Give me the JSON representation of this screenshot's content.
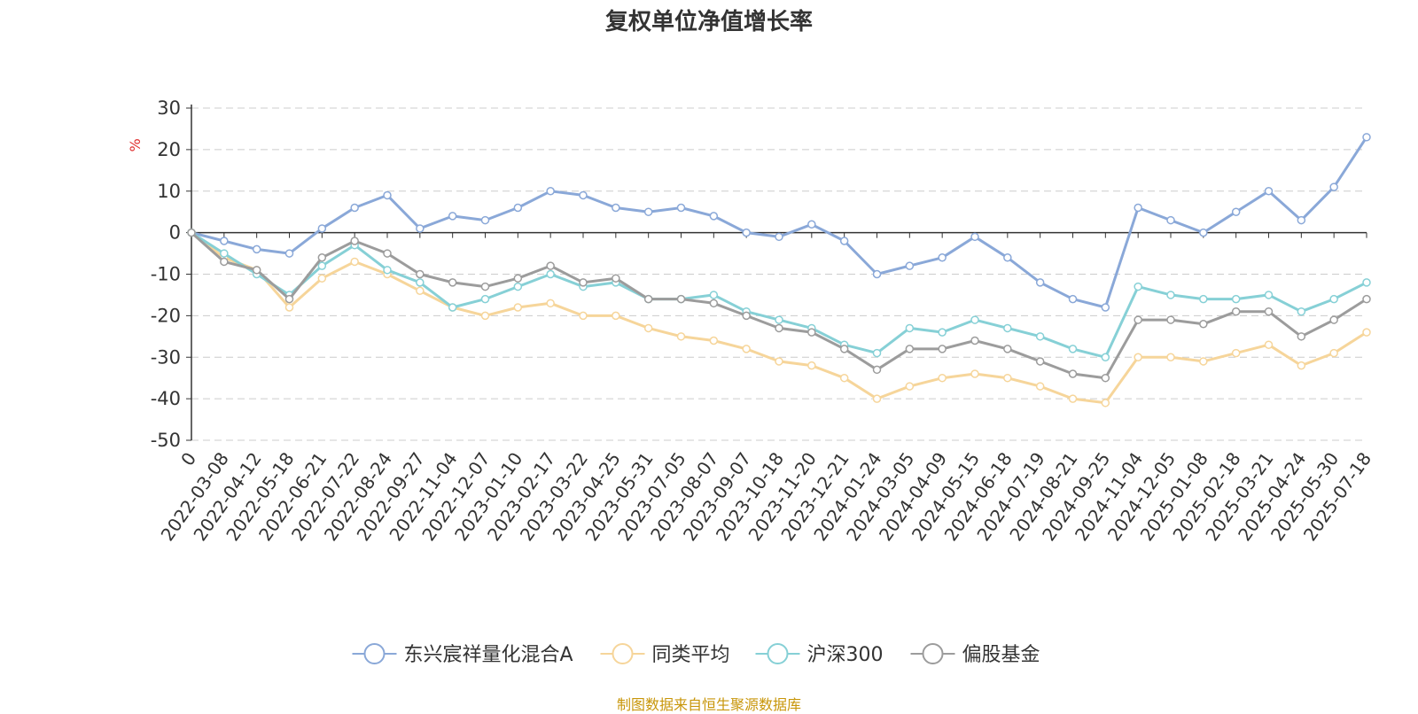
{
  "title": "复权单位净值增长率",
  "source": "制图数据来自恒生聚源数据库",
  "chart_data": {
    "type": "line",
    "ylabel": "%",
    "ylim": [
      -50,
      30
    ],
    "yticks": [
      30,
      20,
      10,
      0,
      -10,
      -20,
      -30,
      -40,
      -50
    ],
    "grid": true,
    "legend_position": "bottom",
    "x": [
      "0",
      "2022-03-08",
      "2022-04-12",
      "2022-05-18",
      "2022-06-21",
      "2022-07-22",
      "2022-08-24",
      "2022-09-27",
      "2022-11-04",
      "2022-12-07",
      "2023-01-10",
      "2023-02-17",
      "2023-03-22",
      "2023-04-25",
      "2023-05-31",
      "2023-07-05",
      "2023-08-07",
      "2023-09-07",
      "2023-10-18",
      "2023-11-20",
      "2023-12-21",
      "2024-01-24",
      "2024-03-05",
      "2024-04-09",
      "2024-05-15",
      "2024-06-18",
      "2024-07-19",
      "2024-08-21",
      "2024-09-25",
      "2024-11-04",
      "2024-12-05",
      "2025-01-08",
      "2025-02-18",
      "2025-03-21",
      "2025-04-24",
      "2025-05-30",
      "2025-07-18"
    ],
    "series": [
      {
        "name": "东兴宸祥量化混合A",
        "color": "#8aa8d8",
        "values": [
          0,
          -2,
          -4,
          -5,
          1,
          6,
          9,
          1,
          4,
          3,
          6,
          10,
          9,
          6,
          5,
          6,
          4,
          0,
          -1,
          2,
          -2,
          -10,
          -8,
          -6,
          -1,
          -6,
          -12,
          -16,
          -18,
          6,
          3,
          0,
          5,
          10,
          3,
          11,
          23
        ]
      },
      {
        "name": "同类平均",
        "color": "#f6d59a",
        "values": [
          0,
          -6,
          -9,
          -18,
          -11,
          -7,
          -10,
          -14,
          -18,
          -20,
          -18,
          -17,
          -20,
          -20,
          -23,
          -25,
          -26,
          -28,
          -31,
          -32,
          -35,
          -40,
          -37,
          -35,
          -34,
          -35,
          -37,
          -40,
          -41,
          -30,
          -30,
          -31,
          -29,
          -27,
          -32,
          -29,
          -24
        ]
      },
      {
        "name": "沪深300",
        "color": "#86d0d6",
        "values": [
          0,
          -5,
          -10,
          -15,
          -8,
          -3,
          -9,
          -12,
          -18,
          -16,
          -13,
          -10,
          -13,
          -12,
          -16,
          -16,
          -15,
          -19,
          -21,
          -23,
          -27,
          -29,
          -23,
          -24,
          -21,
          -23,
          -25,
          -28,
          -30,
          -13,
          -15,
          -16,
          -16,
          -15,
          -19,
          -16,
          -12
        ]
      },
      {
        "name": "偏股基金",
        "color": "#9c9c9c",
        "values": [
          0,
          -7,
          -9,
          -16,
          -6,
          -2,
          -5,
          -10,
          -12,
          -13,
          -11,
          -8,
          -12,
          -11,
          -16,
          -16,
          -17,
          -20,
          -23,
          -24,
          -28,
          -33,
          -28,
          -28,
          -26,
          -28,
          -31,
          -34,
          -35,
          -21,
          -21,
          -22,
          -19,
          -19,
          -25,
          -21,
          -16
        ]
      }
    ]
  }
}
